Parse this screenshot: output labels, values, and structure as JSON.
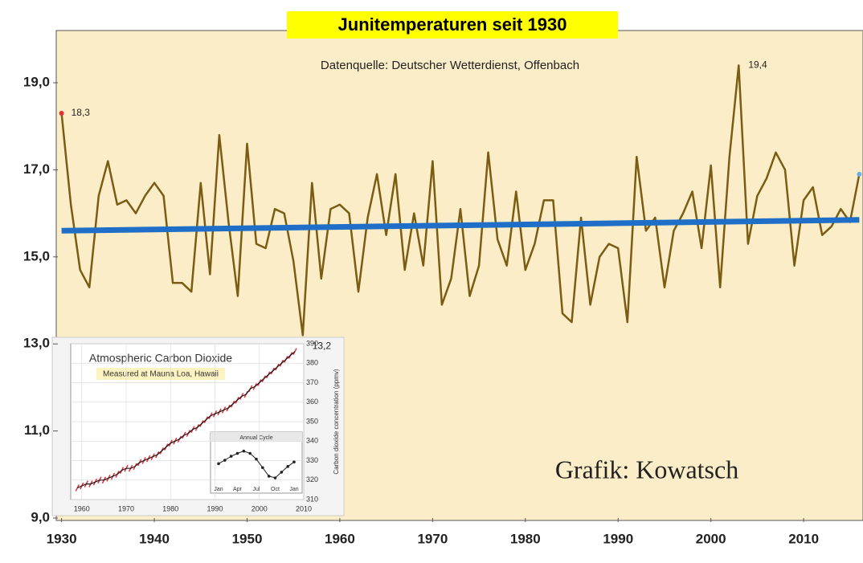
{
  "chart_data": [
    {
      "type": "line",
      "title": "Junitemperaturen seit 1930",
      "subtitle": "Datenquelle: Deutscher Wetterdienst, Offenbach",
      "credit": "Grafik: Kowatsch",
      "x": [
        1930,
        1931,
        1932,
        1933,
        1934,
        1935,
        1936,
        1937,
        1938,
        1939,
        1940,
        1941,
        1942,
        1943,
        1944,
        1945,
        1946,
        1947,
        1948,
        1949,
        1950,
        1951,
        1952,
        1953,
        1954,
        1955,
        1956,
        1957,
        1958,
        1959,
        1960,
        1961,
        1962,
        1963,
        1964,
        1965,
        1966,
        1967,
        1968,
        1969,
        1970,
        1971,
        1972,
        1973,
        1974,
        1975,
        1976,
        1977,
        1978,
        1979,
        1980,
        1981,
        1982,
        1983,
        1984,
        1985,
        1986,
        1987,
        1988,
        1989,
        1990,
        1991,
        1992,
        1993,
        1994,
        1995,
        1996,
        1997,
        1998,
        1999,
        2000,
        2001,
        2002,
        2003,
        2004,
        2005,
        2006,
        2007,
        2008,
        2009,
        2010,
        2011,
        2012,
        2013,
        2014,
        2015,
        2016
      ],
      "values": [
        18.3,
        16.2,
        14.7,
        14.3,
        16.4,
        17.2,
        16.2,
        16.3,
        16.0,
        16.4,
        16.7,
        16.4,
        14.4,
        14.4,
        14.2,
        16.7,
        14.6,
        17.8,
        15.8,
        14.1,
        17.6,
        15.3,
        15.2,
        16.1,
        16.0,
        14.9,
        13.2,
        16.7,
        14.5,
        16.1,
        16.2,
        16.0,
        14.2,
        15.9,
        16.9,
        15.5,
        16.9,
        14.7,
        16.0,
        14.8,
        17.2,
        13.9,
        14.5,
        16.1,
        14.1,
        14.8,
        17.4,
        15.4,
        14.8,
        16.5,
        14.7,
        15.3,
        16.3,
        16.3,
        13.7,
        13.5,
        15.9,
        13.9,
        15.0,
        15.3,
        15.2,
        13.5,
        17.3,
        15.6,
        15.9,
        14.3,
        15.6,
        16.0,
        16.5,
        15.2,
        17.1,
        14.3,
        17.3,
        19.4,
        15.3,
        16.4,
        16.8,
        17.4,
        17.0,
        14.8,
        16.3,
        16.6,
        15.5,
        15.7,
        16.1,
        15.8,
        16.9
      ],
      "value_labels": [
        "18,3",
        null,
        null,
        null,
        null,
        null,
        null,
        null,
        null,
        null,
        null,
        null,
        null,
        null,
        null,
        null,
        null,
        null,
        null,
        null,
        null,
        null,
        null,
        null,
        null,
        null,
        "13,2",
        null,
        null,
        null,
        null,
        null,
        null,
        null,
        null,
        null,
        null,
        null,
        null,
        null,
        null,
        null,
        null,
        null,
        null,
        null,
        null,
        null,
        null,
        null,
        null,
        null,
        null,
        null,
        null,
        null,
        null,
        null,
        null,
        null,
        null,
        null,
        null,
        null,
        null,
        null,
        null,
        null,
        null,
        null,
        null,
        null,
        null,
        "19,4",
        null,
        null,
        null,
        null,
        null,
        null,
        null,
        null,
        null,
        null,
        null,
        null,
        null
      ],
      "color": "#7a5c12",
      "trend": {
        "x": [
          1930,
          2016
        ],
        "values": [
          15.6,
          15.85
        ],
        "color": "#1f6fc8"
      },
      "xlim": [
        1929.6,
        2016.4
      ],
      "ylim": [
        9,
        20.2
      ],
      "xticks": [
        1930,
        1940,
        1950,
        1960,
        1970,
        1980,
        1990,
        2000,
        2010
      ],
      "yticks": [
        {
          "value": 9,
          "label": "9,0"
        },
        {
          "value": 11,
          "label": "11,0"
        },
        {
          "value": 13,
          "label": "13,0"
        },
        {
          "value": 15,
          "label": "15,0"
        },
        {
          "value": 17,
          "label": "17,0"
        },
        {
          "value": 19,
          "label": "19,0"
        }
      ]
    },
    {
      "type": "line",
      "title": "Atmospheric Carbon Dioxide",
      "subtitle": "Measured at Mauna Loa, Hawaii",
      "ylabel": "Carbon dioxide concentration (ppmv)",
      "x": [
        1959,
        1960,
        1961,
        1962,
        1963,
        1964,
        1965,
        1966,
        1967,
        1968,
        1969,
        1970,
        1971,
        1972,
        1973,
        1974,
        1975,
        1976,
        1977,
        1978,
        1979,
        1980,
        1981,
        1982,
        1983,
        1984,
        1985,
        1986,
        1987,
        1988,
        1989,
        1990,
        1991,
        1992,
        1993,
        1994,
        1995,
        1996,
        1997,
        1998,
        1999,
        2000,
        2001,
        2002,
        2003,
        2004,
        2005,
        2006,
        2007,
        2008
      ],
      "values": [
        316,
        317,
        318,
        318,
        319,
        320,
        320,
        321,
        322,
        323,
        325,
        326,
        326,
        327,
        329,
        330,
        331,
        332,
        333,
        335,
        337,
        339,
        340,
        341,
        343,
        344,
        346,
        347,
        349,
        351,
        353,
        354,
        355,
        356,
        357,
        359,
        361,
        363,
        364,
        367,
        368,
        370,
        372,
        374,
        376,
        378,
        380,
        382,
        384,
        386
      ],
      "color": "#1a1a1a",
      "marker_color": "#e0303a",
      "xlim": [
        1957.5,
        2010
      ],
      "ylim": [
        310,
        390
      ],
      "xticks": [
        1960,
        1970,
        1980,
        1990,
        2000,
        2010
      ],
      "yticks": [
        310,
        320,
        330,
        340,
        350,
        360,
        370,
        380,
        390
      ],
      "grid": true
    },
    {
      "type": "line",
      "title": "Annual Cycle",
      "categories": [
        "Jan",
        null,
        null,
        "Apr",
        null,
        null,
        "Jul",
        null,
        null,
        "Oct",
        null,
        null,
        "Jan"
      ],
      "values": [
        0,
        0.6,
        1.3,
        1.8,
        2.2,
        1.8,
        0.8,
        -0.7,
        -2.2,
        -2.5,
        -1.5,
        -0.5,
        0.3
      ],
      "color": "#222",
      "ylim": [
        -3.2,
        3
      ]
    }
  ]
}
